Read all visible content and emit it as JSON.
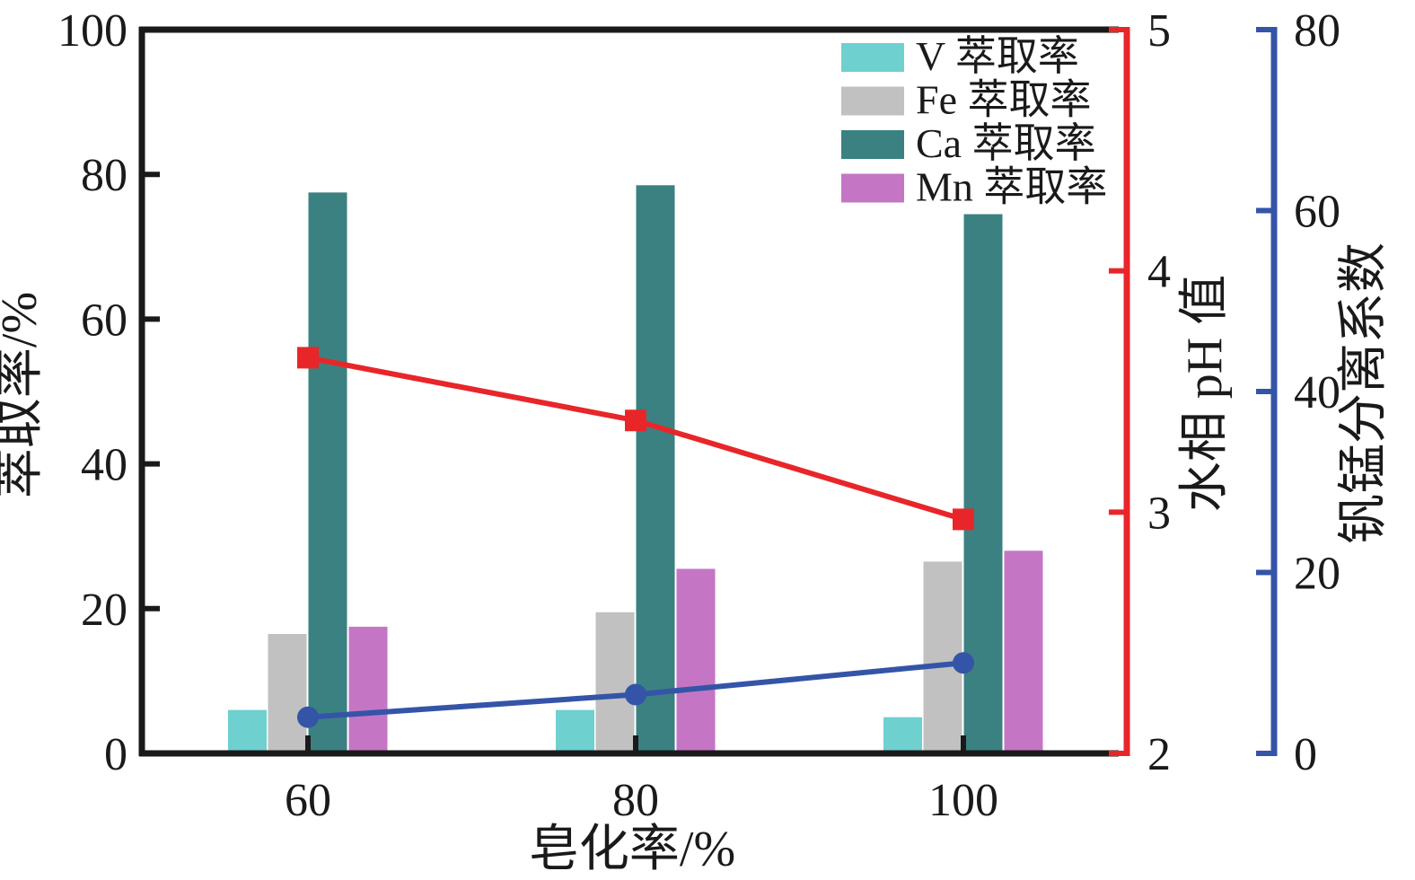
{
  "chart_data": {
    "type": "bar",
    "subtype": "grouped-bars-with-two-overlay-lines",
    "categories": [
      "60",
      "80",
      "100"
    ],
    "xlabel": "皂化率/%",
    "ylabel_left": "萃取率/%",
    "ylabel_right_ph": "水相 pH 值",
    "ylabel_right_sep": "钒锰分离系数",
    "left_axis": {
      "min": 0,
      "max": 100,
      "ticks": [
        "0",
        "20",
        "40",
        "60",
        "80",
        "100"
      ],
      "tick_values": [
        0,
        20,
        40,
        60,
        80,
        100
      ]
    },
    "ph_axis": {
      "min": 2,
      "max": 5,
      "ticks": [
        "2",
        "3",
        "4",
        "5"
      ],
      "tick_values": [
        2,
        3,
        4,
        5
      ],
      "color": "#E8262A"
    },
    "sep_axis": {
      "min": 0,
      "max": 80,
      "ticks": [
        "0",
        "20",
        "40",
        "60",
        "80"
      ],
      "tick_values": [
        0,
        20,
        40,
        60,
        80
      ],
      "color": "#3454A8"
    },
    "bar_series": [
      {
        "key": "v",
        "name": "V 萃取率",
        "color": "#6FD0D0",
        "values": [
          6,
          6,
          5
        ]
      },
      {
        "key": "fe",
        "name": "Fe 萃取率",
        "color": "#C1C1C1",
        "values": [
          16.5,
          19.5,
          26.5
        ]
      },
      {
        "key": "ca",
        "name": "Ca 萃取率",
        "color": "#3B8181",
        "values": [
          77.5,
          78.5,
          74.5
        ]
      },
      {
        "key": "mn",
        "name": "Mn 萃取率",
        "color": "#C476C4",
        "values": [
          17.5,
          25.5,
          28
        ]
      }
    ],
    "line_series": [
      {
        "key": "ph",
        "name": "水相 pH 值",
        "axis": "ph",
        "marker": "square",
        "color": "#E8262A",
        "values": [
          3.64,
          3.38,
          2.97
        ]
      },
      {
        "key": "sep",
        "name": "钒锰分离系数",
        "axis": "sep",
        "marker": "circle",
        "color": "#3454A8",
        "values": [
          4,
          6.5,
          10
        ]
      }
    ],
    "legend": {
      "position": "top-right-inside",
      "entries": [
        "V 萃取率",
        "Fe 萃取率",
        "Ca 萃取率",
        "Mn 萃取率"
      ]
    },
    "grid": "off",
    "axis_color": "#1a1a1a"
  }
}
